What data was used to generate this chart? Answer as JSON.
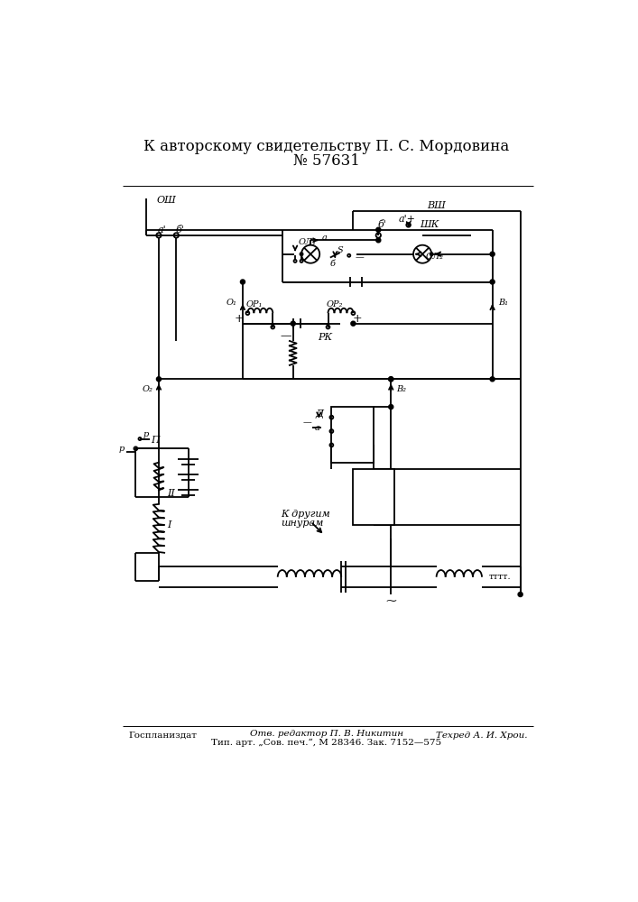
{
  "title_line1": "К авторскому свидетельству П. С. Мордовина",
  "title_line2": "№ 57631",
  "footer_left": "Госпланиздат",
  "footer_center1": "Отв. редактор П. В. Никитин",
  "footer_center2": "Тип. арт. „Сов. печ.“, М 28346. Зак. 7152—575",
  "footer_right": "Техред А. И. Хрои.",
  "bg_color": "#ffffff",
  "line_color": "#000000",
  "font_color": "#000000"
}
